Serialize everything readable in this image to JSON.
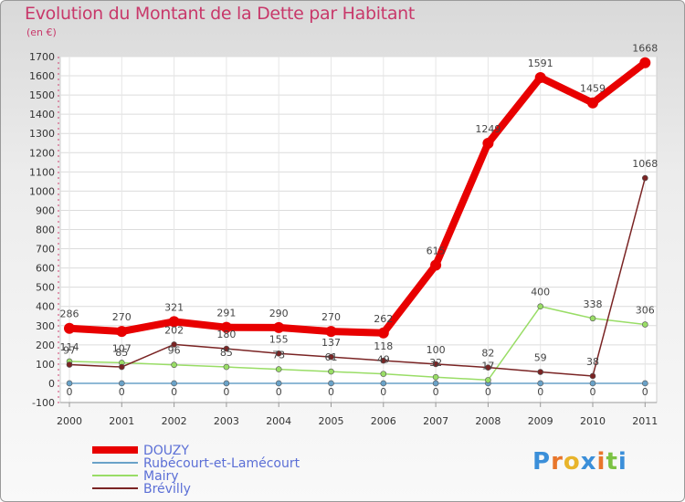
{
  "title": "Evolution du Montant de la Dette par Habitant",
  "subtitle": "(en €)",
  "brand": {
    "letters": [
      "P",
      "r",
      "o",
      "x",
      "i",
      "t",
      "i"
    ],
    "colors": [
      "#3b8fd9",
      "#e8762b",
      "#e8b42b",
      "#3b8fd9",
      "#e8762b",
      "#7cc243",
      "#3b8fd9"
    ]
  },
  "chart_data": {
    "type": "line",
    "x": [
      2000,
      2001,
      2002,
      2003,
      2004,
      2005,
      2006,
      2007,
      2008,
      2009,
      2010,
      2011
    ],
    "ylim": [
      -100,
      1700
    ],
    "yticks": [
      -100,
      0,
      100,
      200,
      300,
      400,
      500,
      600,
      700,
      800,
      900,
      1000,
      1100,
      1200,
      1300,
      1400,
      1500,
      1600,
      1700
    ],
    "grid": true,
    "legend_position": "bottom-left",
    "series": [
      {
        "name": "DOUZY",
        "color": "#e80000",
        "width": 8,
        "marker_r": 6,
        "values": [
          286,
          270,
          321,
          291,
          290,
          270,
          262,
          615,
          1249,
          1591,
          1459,
          1668
        ]
      },
      {
        "name": "Rubécourt-et-Lamécourt",
        "color": "#6aa2c8",
        "width": 1.5,
        "marker_r": 3,
        "values": [
          0,
          0,
          0,
          0,
          0,
          0,
          0,
          0,
          0,
          0,
          0,
          0
        ]
      },
      {
        "name": "Mairy",
        "color": "#99dd66",
        "width": 1.5,
        "marker_r": 3,
        "values": [
          114,
          107,
          96,
          85,
          73,
          61,
          49,
          32,
          17,
          400,
          338,
          306
        ]
      },
      {
        "name": "Brévilly",
        "color": "#7a2424",
        "width": 1.5,
        "marker_r": 3,
        "values": [
          97,
          85,
          202,
          180,
          155,
          137,
          118,
          100,
          82,
          59,
          38,
          1068
        ]
      }
    ]
  }
}
